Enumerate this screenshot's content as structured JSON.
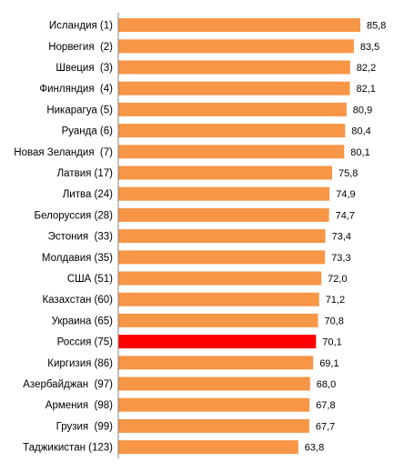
{
  "chart_data": {
    "type": "bar",
    "orientation": "horizontal",
    "categories": [
      "Исландия (1)",
      "Норвегия  (2)",
      "Швеция  (3)",
      "Финляндия  (4)",
      "Никарагуа (5)",
      "Руанда (6)",
      "Новая Зеландия  (7)",
      "Латвия (17)",
      "Литва (24)",
      "Белоруссия (28)",
      "Эстония  (33)",
      "Молдавия (35)",
      "США (51)",
      "Казахстан (60)",
      "Украина (65)",
      "Россия (75)",
      "Киргизия (86)",
      "Азербайджан  (97)",
      "Армения  (98)",
      "Грузия  (99)",
      "Таджикистан (123)"
    ],
    "values": [
      85.8,
      83.5,
      82.2,
      82.1,
      80.9,
      80.4,
      80.1,
      75.8,
      74.9,
      74.7,
      73.4,
      73.3,
      72.0,
      71.2,
      70.8,
      70.1,
      69.1,
      68.0,
      67.8,
      67.7,
      63.8
    ],
    "value_labels": [
      "85,8",
      "83,5",
      "82,2",
      "82,1",
      "80,9",
      "80,4",
      "80,1",
      "75,8",
      "74,9",
      "74,7",
      "73,4",
      "73,3",
      "72,0",
      "71,2",
      "70,8",
      "70,1",
      "69,1",
      "68,0",
      "67,8",
      "67,7",
      "63,8"
    ],
    "highlight_category": "Россия (75)",
    "colors": {
      "bar": "#f79646",
      "highlight": "#ff0000",
      "axis": "#808080",
      "text": "#000000"
    },
    "xlim": [
      0,
      100
    ],
    "grid": false,
    "legend": "none"
  }
}
